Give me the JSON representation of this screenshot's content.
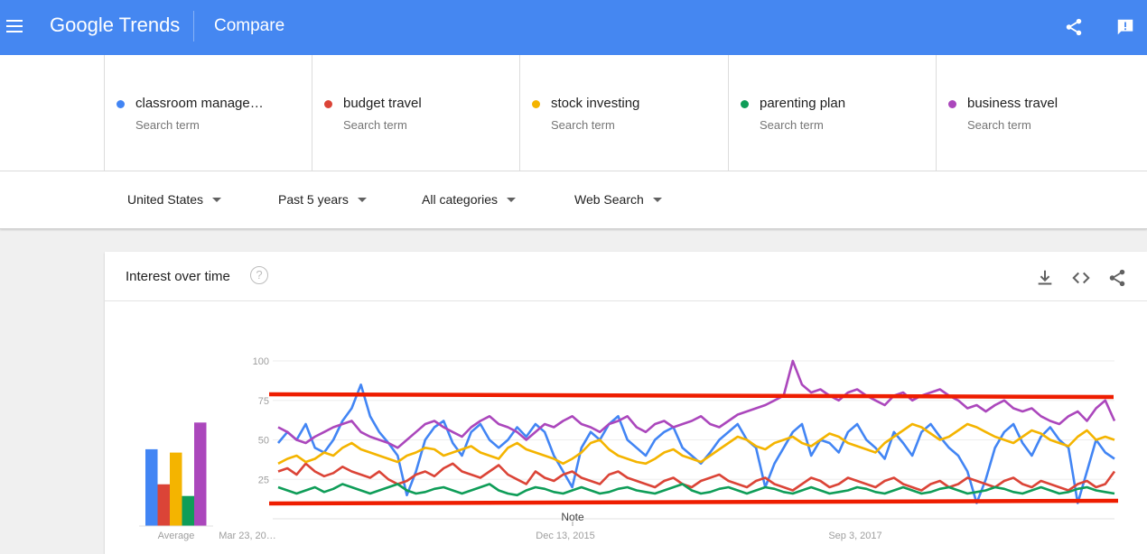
{
  "header": {
    "logo_text": "Google Trends",
    "title": "Compare",
    "icons": [
      "menu-icon",
      "share-icon",
      "feedback-icon"
    ]
  },
  "terms": [
    {
      "name": "classroom manage…",
      "sub": "Search term",
      "color": "#4285f4"
    },
    {
      "name": "budget travel",
      "sub": "Search term",
      "color": "#db4437"
    },
    {
      "name": "stock investing",
      "sub": "Search term",
      "color": "#f4b400"
    },
    {
      "name": "parenting plan",
      "sub": "Search term",
      "color": "#0f9d58"
    },
    {
      "name": "business travel",
      "sub": "Search term",
      "color": "#ab47bc"
    }
  ],
  "filters": {
    "region": "United States",
    "time": "Past 5 years",
    "category": "All categories",
    "property": "Web Search"
  },
  "card": {
    "title": "Interest over time",
    "help_glyph": "?",
    "actions": [
      "download-icon",
      "embed-icon",
      "share-icon"
    ]
  },
  "chart_data": {
    "type": "line",
    "ylim": [
      0,
      100
    ],
    "yticks": [
      "100",
      "75",
      "50",
      "25"
    ],
    "xticks": [
      "Mar 23, 20…",
      "Dec 13, 2015",
      "Sep 3, 2017"
    ],
    "note_label": "Note",
    "average_label": "Average",
    "averages": [
      {
        "term": "classroom manage…",
        "value": 46,
        "color": "#4285f4"
      },
      {
        "term": "budget travel",
        "value": 25,
        "color": "#db4437"
      },
      {
        "term": "stock investing",
        "value": 44,
        "color": "#f4b400"
      },
      {
        "term": "parenting plan",
        "value": 18,
        "color": "#0f9d58"
      },
      {
        "term": "business travel",
        "value": 62,
        "color": "#ab47bc"
      }
    ],
    "series": [
      {
        "name": "classroom manage…",
        "color": "#4285f4",
        "values": [
          48,
          55,
          50,
          60,
          45,
          42,
          50,
          62,
          70,
          85,
          65,
          55,
          48,
          40,
          15,
          30,
          50,
          58,
          62,
          48,
          40,
          55,
          60,
          50,
          45,
          50,
          58,
          52,
          60,
          55,
          40,
          30,
          20,
          45,
          55,
          50,
          60,
          65,
          50,
          45,
          40,
          50,
          55,
          58,
          45,
          40,
          35,
          42,
          50,
          55,
          60,
          50,
          45,
          20,
          35,
          45,
          55,
          60,
          40,
          50,
          48,
          42,
          55,
          60,
          50,
          45,
          38,
          55,
          48,
          40,
          55,
          60,
          52,
          45,
          40,
          30,
          10,
          25,
          45,
          55,
          60,
          48,
          40,
          52,
          58,
          50,
          45,
          10,
          30,
          50,
          42,
          38
        ]
      },
      {
        "name": "budget travel",
        "color": "#db4437",
        "values": [
          30,
          32,
          28,
          35,
          30,
          27,
          29,
          33,
          30,
          28,
          26,
          30,
          25,
          22,
          24,
          28,
          30,
          27,
          32,
          35,
          30,
          28,
          26,
          30,
          34,
          28,
          25,
          22,
          30,
          26,
          24,
          28,
          30,
          26,
          24,
          22,
          28,
          30,
          26,
          24,
          22,
          20,
          24,
          26,
          22,
          20,
          24,
          26,
          28,
          24,
          22,
          20,
          24,
          26,
          22,
          20,
          18,
          22,
          26,
          24,
          20,
          22,
          26,
          24,
          22,
          20,
          24,
          26,
          22,
          20,
          18,
          22,
          24,
          20,
          22,
          26,
          24,
          22,
          20,
          24,
          26,
          22,
          20,
          24,
          22,
          20,
          18,
          22,
          24,
          20,
          22,
          30
        ]
      },
      {
        "name": "stock investing",
        "color": "#f4b400",
        "values": [
          35,
          38,
          40,
          36,
          38,
          42,
          40,
          45,
          48,
          44,
          42,
          40,
          38,
          36,
          40,
          42,
          45,
          44,
          40,
          42,
          44,
          46,
          42,
          40,
          38,
          45,
          48,
          44,
          42,
          40,
          38,
          35,
          38,
          42,
          48,
          50,
          44,
          40,
          38,
          36,
          35,
          38,
          42,
          44,
          40,
          38,
          36,
          40,
          44,
          48,
          52,
          50,
          46,
          44,
          48,
          50,
          52,
          48,
          46,
          50,
          54,
          52,
          48,
          46,
          44,
          42,
          48,
          52,
          56,
          60,
          58,
          54,
          50,
          52,
          56,
          60,
          58,
          55,
          52,
          50,
          48,
          52,
          56,
          54,
          50,
          48,
          46,
          52,
          56,
          50,
          52,
          50
        ]
      },
      {
        "name": "parenting plan",
        "color": "#0f9d58",
        "values": [
          20,
          18,
          16,
          18,
          20,
          17,
          19,
          22,
          20,
          18,
          16,
          18,
          20,
          22,
          18,
          16,
          17,
          19,
          20,
          18,
          16,
          18,
          20,
          22,
          18,
          16,
          15,
          18,
          20,
          19,
          17,
          16,
          18,
          20,
          18,
          16,
          17,
          19,
          20,
          18,
          17,
          16,
          18,
          20,
          22,
          18,
          16,
          17,
          19,
          20,
          18,
          16,
          18,
          20,
          19,
          17,
          16,
          18,
          20,
          18,
          16,
          17,
          18,
          20,
          19,
          17,
          16,
          18,
          20,
          18,
          16,
          17,
          19,
          20,
          18,
          16,
          17,
          18,
          20,
          19,
          17,
          16,
          18,
          20,
          18,
          16,
          17,
          19,
          20,
          18,
          17,
          16
        ]
      },
      {
        "name": "business travel",
        "color": "#ab47bc",
        "values": [
          58,
          55,
          50,
          48,
          52,
          55,
          58,
          60,
          62,
          55,
          52,
          50,
          48,
          45,
          50,
          55,
          60,
          62,
          58,
          55,
          52,
          58,
          62,
          65,
          60,
          58,
          55,
          50,
          55,
          60,
          58,
          62,
          65,
          60,
          58,
          55,
          60,
          62,
          65,
          58,
          55,
          60,
          62,
          58,
          60,
          62,
          65,
          60,
          58,
          62,
          66,
          68,
          70,
          72,
          75,
          78,
          100,
          85,
          80,
          82,
          78,
          75,
          80,
          82,
          78,
          75,
          72,
          78,
          80,
          75,
          78,
          80,
          82,
          78,
          75,
          70,
          72,
          68,
          72,
          75,
          70,
          68,
          70,
          65,
          62,
          60,
          65,
          68,
          62,
          70,
          75,
          62
        ]
      }
    ]
  }
}
